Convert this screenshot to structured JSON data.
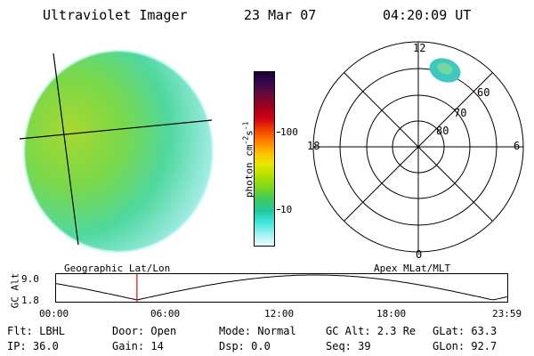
{
  "header": {
    "title": "Ultraviolet Imager",
    "date": "23 Mar 07",
    "time": "04:20:09 UT"
  },
  "colorbar": {
    "unit_text": "photon cm",
    "unit_exp1": "-2",
    "unit_mid": "s",
    "unit_exp2": "-1",
    "ticks": [
      "100",
      "10"
    ],
    "colors": [
      "#1a0033",
      "#3a0a4d",
      "#6a0a3a",
      "#a0001a",
      "#d0001a",
      "#f04000",
      "#ff8000",
      "#ffc000",
      "#e8e800",
      "#b0e000",
      "#78d820",
      "#40c860",
      "#20c8a0",
      "#40e8e0",
      "#a0f0f0",
      "#e8ffff"
    ]
  },
  "image_panel": {
    "label": "Geographic Lat/Lon",
    "fill_color": "#7ad84a",
    "edge_color": "#a8f0e8"
  },
  "polar_panel": {
    "label": "Apex MLat/MLT",
    "mlt_labels": {
      "top": "12",
      "bottom": "0",
      "left": "18",
      "right": "6"
    },
    "lat_labels": [
      "60",
      "70",
      "80"
    ],
    "blob_color": "#40c8c0"
  },
  "alt_plot": {
    "ylabel": "GC Alt",
    "yticks": [
      "9.0",
      "1.8"
    ],
    "xticks": [
      "00:00",
      "06:00",
      "12:00",
      "18:00",
      "23:59"
    ],
    "marker_time_hours": 4.34,
    "marker_color": "#ff0000"
  },
  "info": {
    "row1": {
      "flt": "Flt: LBHL",
      "door": "Door: Open",
      "mode": "Mode: Normal",
      "gcalt": "GC Alt: 2.3 Re",
      "glat": "GLat:  63.3"
    },
    "row2": {
      "ip": "IP: 36.0",
      "gain": "Gain: 14",
      "dsp": "Dsp:     0.0",
      "seq": "Seq: 39",
      "glon": "GLon:  92.7"
    }
  }
}
